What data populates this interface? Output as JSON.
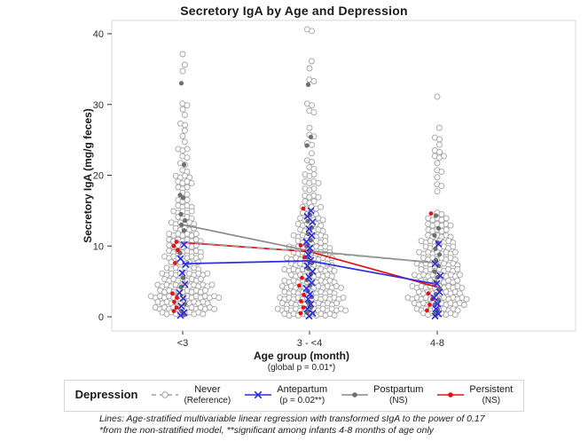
{
  "chart_data": {
    "type": "scatter",
    "title": "Secretory IgA by Age and Depression",
    "ylabel": "Secretory IgA (mg/g feces)",
    "xlabel": "Age group (month)",
    "xlabel_note": "(global p = 0.01*)",
    "ylim": [
      0,
      40
    ],
    "yticks": [
      0,
      10,
      20,
      30,
      40
    ],
    "categories": [
      "<3",
      "3 - <4",
      "4-8"
    ],
    "legend_title": "Depression",
    "series": [
      {
        "name": "Never",
        "subtitle": "(Reference)",
        "marker": "open-circle",
        "line_style": "dashed",
        "color": "#a3a3a3",
        "line_color": "#9f9f9f",
        "line_values": [
          10.6,
          9.2,
          7.6
        ]
      },
      {
        "name": "Antepartum",
        "subtitle": "(p = 0.02**)",
        "marker": "x",
        "line_style": "solid",
        "color": "#2d2de0",
        "line_color": "#2d2de0",
        "line_values": [
          7.5,
          7.9,
          4.6
        ]
      },
      {
        "name": "Postpartum",
        "subtitle": "(NS)",
        "marker": "dot",
        "line_style": "solid",
        "color": "#6f6f6f",
        "line_color": "#8a8a8a",
        "line_values": [
          13.0,
          9.3,
          7.6
        ]
      },
      {
        "name": "Persistent",
        "subtitle": "(NS)",
        "marker": "dot",
        "line_style": "solid",
        "color": "#e51212",
        "line_color": "#e51212",
        "line_values": [
          10.5,
          9.2,
          4.2
        ]
      }
    ],
    "points": {
      "never_rows": [
        [
          [
            37,
            1
          ],
          [
            35.5,
            1
          ],
          [
            34.6,
            1
          ],
          [
            30,
            2
          ],
          [
            29.2,
            1
          ],
          [
            28.4,
            1
          ],
          [
            27.2,
            2
          ],
          [
            26.2,
            1
          ],
          [
            25.4,
            1
          ],
          [
            24.6,
            1
          ],
          [
            23.6,
            3
          ],
          [
            22.6,
            2
          ],
          [
            21.6,
            2
          ],
          [
            20.6,
            2
          ],
          [
            19.8,
            4
          ],
          [
            19,
            4
          ],
          [
            18.2,
            3
          ],
          [
            17.4,
            2
          ],
          [
            16.4,
            3
          ],
          [
            15.6,
            4
          ],
          [
            14.8,
            5
          ],
          [
            14,
            4
          ],
          [
            13.2,
            6
          ],
          [
            12.4,
            5
          ],
          [
            11.6,
            7
          ],
          [
            10.8,
            8
          ],
          [
            10,
            7
          ],
          [
            9.2,
            8
          ],
          [
            8.4,
            9
          ],
          [
            7.6,
            7
          ],
          [
            6.8,
            8
          ],
          [
            6,
            11
          ],
          [
            5.2,
            9
          ],
          [
            4.4,
            13
          ],
          [
            3.6,
            11
          ],
          [
            2.8,
            16
          ],
          [
            2,
            12
          ],
          [
            1.2,
            14
          ],
          [
            0.5,
            10
          ]
        ],
        [
          [
            40.5,
            2
          ],
          [
            36,
            1
          ],
          [
            35,
            1
          ],
          [
            33.4,
            2
          ],
          [
            30,
            2
          ],
          [
            29,
            2
          ],
          [
            26.6,
            1
          ],
          [
            25.6,
            2
          ],
          [
            24.4,
            2
          ],
          [
            23,
            1
          ],
          [
            22,
            2
          ],
          [
            21,
            2
          ],
          [
            20,
            3
          ],
          [
            19,
            4
          ],
          [
            18,
            3
          ],
          [
            17,
            4
          ],
          [
            16.2,
            3
          ],
          [
            15.4,
            5
          ],
          [
            14.6,
            4
          ],
          [
            13.8,
            6
          ],
          [
            13,
            6
          ],
          [
            12.2,
            6
          ],
          [
            11.4,
            8
          ],
          [
            10.6,
            7
          ],
          [
            9.8,
            10
          ],
          [
            9,
            9
          ],
          [
            8.2,
            11
          ],
          [
            7.4,
            10
          ],
          [
            6.6,
            12
          ],
          [
            5.8,
            10
          ],
          [
            5,
            12
          ],
          [
            4.2,
            14
          ],
          [
            3.4,
            12
          ],
          [
            2.6,
            15
          ],
          [
            1.8,
            13
          ],
          [
            1,
            16
          ],
          [
            0.3,
            12
          ]
        ],
        [
          [
            31,
            1
          ],
          [
            26.6,
            1
          ],
          [
            25.2,
            2
          ],
          [
            24.2,
            1
          ],
          [
            23.4,
            2
          ],
          [
            22.6,
            3
          ],
          [
            21.6,
            1
          ],
          [
            20.6,
            2
          ],
          [
            19.6,
            1
          ],
          [
            18.6,
            2
          ],
          [
            17.6,
            1
          ],
          [
            14.6,
            2
          ],
          [
            13.8,
            5
          ],
          [
            13,
            6
          ],
          [
            12.2,
            5
          ],
          [
            11.4,
            6
          ],
          [
            10.6,
            8
          ],
          [
            9.8,
            7
          ],
          [
            9,
            9
          ],
          [
            8.2,
            8
          ],
          [
            7.4,
            10
          ],
          [
            6.6,
            9
          ],
          [
            5.8,
            11
          ],
          [
            5,
            9
          ],
          [
            4.2,
            12
          ],
          [
            3.4,
            10
          ],
          [
            2.6,
            14
          ],
          [
            1.8,
            12
          ],
          [
            1,
            10
          ],
          [
            0.4,
            8
          ]
        ]
      ],
      "antepartum": [
        [
          10.2,
          8.2,
          7.4,
          6.2,
          4.6,
          3.4,
          2.6,
          1.5,
          0.6,
          0.2
        ],
        [
          15,
          14.2,
          13.4,
          12.4,
          11.5,
          10.6,
          9.7,
          8.8,
          8,
          7.2,
          6.4,
          5.6,
          4.8,
          4,
          3.2,
          2.5,
          1.8,
          1.1,
          0.5,
          0.1
        ],
        [
          10.3,
          7.5,
          5.8,
          4.7,
          3.5,
          2.7,
          1.8,
          1.1,
          0.4,
          0.1
        ]
      ],
      "postpartum": [
        [
          33,
          21.5,
          17.2,
          16.8,
          14.5,
          13.6,
          13,
          12.2,
          9,
          5.5,
          4.2,
          1.8,
          0.8,
          0.3
        ],
        [
          32.8,
          25.4,
          24.2,
          14.4,
          13.5,
          12.6,
          11.7,
          10.8,
          10,
          9.2,
          8.4,
          7.6,
          6.8,
          6,
          5.2,
          4.4,
          3.6,
          2.8,
          2,
          1.3,
          0.6
        ],
        [
          14.3,
          12.5,
          11.5,
          10.5,
          9.6,
          8.8,
          8,
          7.2,
          6.4,
          5.6,
          4.8,
          4,
          3.2,
          2.4,
          1.7,
          1,
          0.5
        ]
      ],
      "persistent": [
        [
          10.6,
          10,
          9.4,
          7.6,
          3.3,
          2.7,
          2.1,
          1.3,
          0.8
        ],
        [
          15.3,
          10.1,
          8.4,
          5.5,
          4.4,
          3.1,
          2.2,
          1.3,
          0.5
        ],
        [
          14.6,
          3.3,
          2.5,
          1.7,
          0.9
        ]
      ]
    }
  },
  "footnotes": {
    "line1": "Lines: Age-stratified multivariable linear regression with transformed sIgA to the power of 0.17",
    "line2": "*from the non-stratified model, **significant among infants 4-8 months of age only"
  }
}
